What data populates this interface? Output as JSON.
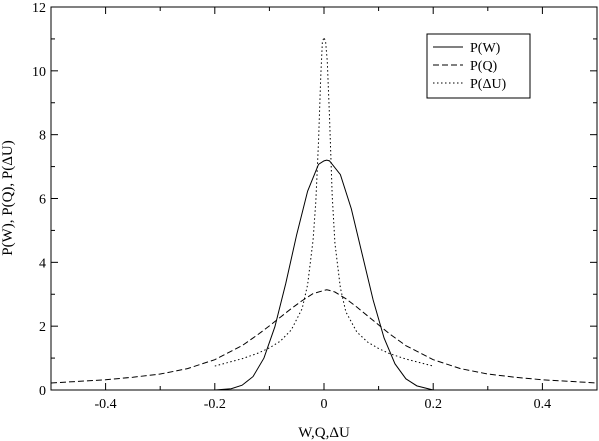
{
  "chart_data": {
    "type": "line",
    "title": "",
    "xlabel": "W,Q,ΔU",
    "ylabel": "P(W), P(Q), P(ΔU)",
    "xlim": [
      -0.5,
      0.5
    ],
    "ylim": [
      0,
      12
    ],
    "xticks": [
      -0.4,
      -0.2,
      0,
      0.2,
      0.4
    ],
    "xtick_labels": [
      "-0.4",
      "-0.2",
      "0",
      "0.2",
      "0.4"
    ],
    "yticks": [
      0,
      2,
      4,
      6,
      8,
      10,
      12
    ],
    "ytick_labels": [
      "0",
      "2",
      "4",
      "6",
      "8",
      "10",
      "12"
    ],
    "grid": false,
    "legend_position": "top-right",
    "series": [
      {
        "name": "P(W)",
        "style": "solid",
        "x": [
          -0.2,
          -0.17,
          -0.15,
          -0.13,
          -0.11,
          -0.09,
          -0.07,
          -0.05,
          -0.03,
          -0.01,
          0.0,
          0.005,
          0.01,
          0.03,
          0.05,
          0.07,
          0.09,
          0.11,
          0.13,
          0.15,
          0.17,
          0.2
        ],
        "y": [
          0.0,
          0.04,
          0.15,
          0.42,
          1.0,
          1.98,
          3.34,
          4.87,
          6.23,
          7.07,
          7.18,
          7.2,
          7.18,
          6.75,
          5.68,
          4.25,
          2.82,
          1.63,
          0.82,
          0.35,
          0.13,
          0.0
        ]
      },
      {
        "name": "P(Q)",
        "style": "dashed",
        "x": [
          -0.5,
          -0.45,
          -0.4,
          -0.35,
          -0.3,
          -0.25,
          -0.2,
          -0.15,
          -0.12,
          -0.1,
          -0.08,
          -0.06,
          -0.04,
          -0.02,
          0.0,
          0.005,
          0.01,
          0.02,
          0.04,
          0.06,
          0.08,
          0.1,
          0.12,
          0.15,
          0.2,
          0.25,
          0.3,
          0.35,
          0.4,
          0.45,
          0.5
        ],
        "y": [
          0.22,
          0.27,
          0.32,
          0.4,
          0.5,
          0.67,
          0.95,
          1.39,
          1.75,
          2.01,
          2.28,
          2.55,
          2.8,
          3.02,
          3.12,
          3.14,
          3.12,
          3.07,
          2.86,
          2.6,
          2.32,
          2.04,
          1.76,
          1.39,
          0.95,
          0.67,
          0.5,
          0.4,
          0.32,
          0.27,
          0.22
        ]
      },
      {
        "name": "P(ΔU)",
        "style": "dotted",
        "x": [
          -0.2,
          -0.15,
          -0.12,
          -0.1,
          -0.08,
          -0.06,
          -0.04,
          -0.03,
          -0.02,
          -0.015,
          -0.01,
          -0.006,
          -0.003,
          0.0,
          0.003,
          0.006,
          0.01,
          0.015,
          0.02,
          0.03,
          0.04,
          0.06,
          0.08,
          0.1,
          0.12,
          0.15,
          0.2
        ],
        "y": [
          0.75,
          0.98,
          1.16,
          1.32,
          1.53,
          1.88,
          2.55,
          3.3,
          4.7,
          5.9,
          7.8,
          9.8,
          10.9,
          11.05,
          10.9,
          10.3,
          8.6,
          6.1,
          4.6,
          3.2,
          2.45,
          1.82,
          1.5,
          1.3,
          1.14,
          0.97,
          0.75
        ]
      }
    ]
  }
}
